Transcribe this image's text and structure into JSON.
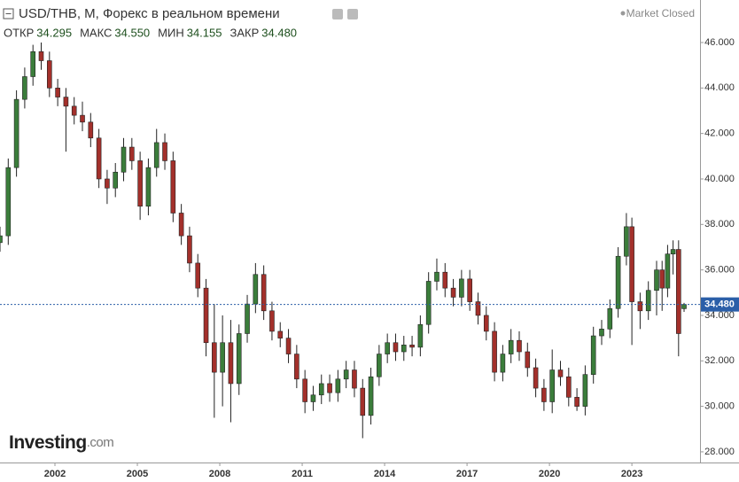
{
  "chart_data": {
    "type": "candlestick",
    "title": "USD/THB, M, Форекс в реальном времени",
    "status": "Market Closed",
    "brand": {
      "name": "Investing",
      "suffix": ".com"
    },
    "header_items": [
      {
        "name": "ОТКР",
        "label": "34.295"
      },
      {
        "name": "МАКС",
        "label": "34.550"
      },
      {
        "name": "МИН",
        "label": "34.155"
      },
      {
        "name": "ЗАКР",
        "label": "34.480"
      }
    ],
    "last_price": {
      "value": 34.48,
      "label": "34.480"
    },
    "up_color": "#3b7d3b",
    "down_color": "#a3302b",
    "line_color": "#2b5fa8",
    "xlim": [
      2000.0,
      2025.48
    ],
    "xticks": [
      2002,
      2005,
      2008,
      2011,
      2014,
      2017,
      2020,
      2023
    ],
    "ylim": [
      27.53,
      47.87
    ],
    "yticks": [
      {
        "value": 28,
        "label": "28.000"
      },
      {
        "value": 30,
        "label": "30.000"
      },
      {
        "value": 32,
        "label": "32.000"
      },
      {
        "value": 34,
        "label": "34.000"
      },
      {
        "value": 36,
        "label": "36.000"
      },
      {
        "value": 38,
        "label": "38.000"
      },
      {
        "value": 40,
        "label": "40.000"
      },
      {
        "value": 42,
        "label": "42.000"
      },
      {
        "value": 44,
        "label": "44.000"
      },
      {
        "value": 46,
        "label": "46.000"
      }
    ],
    "x": [
      2000.0,
      2000.3,
      2000.6,
      2000.9,
      2001.2,
      2001.5,
      2001.8,
      2002.1,
      2002.4,
      2002.7,
      2003.0,
      2003.3,
      2003.6,
      2003.9,
      2004.2,
      2004.5,
      2004.8,
      2005.1,
      2005.4,
      2005.7,
      2006.0,
      2006.3,
      2006.6,
      2006.9,
      2007.2,
      2007.5,
      2007.8,
      2008.1,
      2008.4,
      2008.7,
      2009.0,
      2009.3,
      2009.6,
      2009.9,
      2010.2,
      2010.5,
      2010.8,
      2011.1,
      2011.4,
      2011.7,
      2012.0,
      2012.3,
      2012.6,
      2012.9,
      2013.2,
      2013.5,
      2013.8,
      2014.1,
      2014.4,
      2014.7,
      2015.0,
      2015.3,
      2015.6,
      2015.9,
      2016.2,
      2016.5,
      2016.8,
      2017.1,
      2017.4,
      2017.7,
      2018.0,
      2018.3,
      2018.6,
      2018.9,
      2019.2,
      2019.5,
      2019.8,
      2020.1,
      2020.4,
      2020.7,
      2021.0,
      2021.3,
      2021.6,
      2021.9,
      2022.2,
      2022.5,
      2022.8,
      2023.0,
      2023.3,
      2023.6,
      2023.9,
      2024.1,
      2024.3,
      2024.5,
      2024.7,
      2024.9
    ],
    "open": [
      37.2,
      37.5,
      40.5,
      43.5,
      44.5,
      45.6,
      45.2,
      44.0,
      43.6,
      43.2,
      42.8,
      42.5,
      41.8,
      40.0,
      39.6,
      40.3,
      41.4,
      40.8,
      38.8,
      40.5,
      41.6,
      40.8,
      38.5,
      37.5,
      36.3,
      35.2,
      32.8,
      31.5,
      32.8,
      31.0,
      33.2,
      34.5,
      35.8,
      34.2,
      33.3,
      33.0,
      32.3,
      31.2,
      30.2,
      30.5,
      31.0,
      30.6,
      31.2,
      31.6,
      30.8,
      29.6,
      31.3,
      32.3,
      32.8,
      32.4,
      32.7,
      32.6,
      33.6,
      35.5,
      35.9,
      35.2,
      34.8,
      35.6,
      34.6,
      34.0,
      33.3,
      31.5,
      32.3,
      32.9,
      32.4,
      31.7,
      30.8,
      30.2,
      31.6,
      31.3,
      30.4,
      30.0,
      31.4,
      33.1,
      33.4,
      34.3,
      36.6,
      37.9,
      34.6,
      34.2,
      35.1,
      36.0,
      35.2,
      36.7,
      36.9,
      34.295
    ],
    "high": [
      37.9,
      40.9,
      43.9,
      44.9,
      45.9,
      46.0,
      45.6,
      44.4,
      44.0,
      43.6,
      43.4,
      42.9,
      42.2,
      40.4,
      40.7,
      41.8,
      41.8,
      41.2,
      40.9,
      42.2,
      42.0,
      41.2,
      38.9,
      37.9,
      36.7,
      35.6,
      34.5,
      34.0,
      33.8,
      33.6,
      34.9,
      36.3,
      36.2,
      34.6,
      33.7,
      33.4,
      32.7,
      31.6,
      30.9,
      31.4,
      31.4,
      31.6,
      32.0,
      32.0,
      31.2,
      31.7,
      32.7,
      33.2,
      33.2,
      33.1,
      33.1,
      34.0,
      35.9,
      36.5,
      36.3,
      35.6,
      36.0,
      36.0,
      35.0,
      34.4,
      33.7,
      32.7,
      33.4,
      33.3,
      32.8,
      32.1,
      31.2,
      32.5,
      32.0,
      31.7,
      30.8,
      31.8,
      33.5,
      33.8,
      34.7,
      37.0,
      38.5,
      38.3,
      35.0,
      35.5,
      36.4,
      36.4,
      37.1,
      37.3,
      37.3,
      34.55
    ],
    "low": [
      36.8,
      37.1,
      40.1,
      43.1,
      44.1,
      44.8,
      43.6,
      43.2,
      41.2,
      42.4,
      42.1,
      41.4,
      39.6,
      38.9,
      39.2,
      39.9,
      40.4,
      38.2,
      38.4,
      40.1,
      40.4,
      38.1,
      37.1,
      35.9,
      34.8,
      32.2,
      29.5,
      30.0,
      29.3,
      30.5,
      32.8,
      34.1,
      33.8,
      32.9,
      32.6,
      31.9,
      30.8,
      29.7,
      29.8,
      30.1,
      30.2,
      30.2,
      30.8,
      30.4,
      28.6,
      29.2,
      30.9,
      31.9,
      32.0,
      32.0,
      32.2,
      32.2,
      33.2,
      35.1,
      34.8,
      34.4,
      34.4,
      34.2,
      33.6,
      32.9,
      31.1,
      31.1,
      31.9,
      32.0,
      31.3,
      30.4,
      29.8,
      29.7,
      30.9,
      30.0,
      29.8,
      29.6,
      31.0,
      32.7,
      33.0,
      33.9,
      36.2,
      32.7,
      33.4,
      33.8,
      34.0,
      34.2,
      34.8,
      35.8,
      32.2,
      34.155
    ],
    "close": [
      37.5,
      40.5,
      43.5,
      44.5,
      45.6,
      45.2,
      44.0,
      43.6,
      43.2,
      42.8,
      42.5,
      41.8,
      40.0,
      39.6,
      40.3,
      41.4,
      40.8,
      38.8,
      40.5,
      41.6,
      40.8,
      38.5,
      37.5,
      36.3,
      35.2,
      32.8,
      31.5,
      32.8,
      31.0,
      33.2,
      34.5,
      35.8,
      34.2,
      33.3,
      33.0,
      32.3,
      31.2,
      30.2,
      30.5,
      31.0,
      30.6,
      31.2,
      31.6,
      30.8,
      29.6,
      31.3,
      32.3,
      32.8,
      32.4,
      32.7,
      32.6,
      33.6,
      35.5,
      35.9,
      35.2,
      34.8,
      35.6,
      34.6,
      34.0,
      33.3,
      31.5,
      32.3,
      32.9,
      32.4,
      31.7,
      30.8,
      30.2,
      31.6,
      31.3,
      30.4,
      30.0,
      31.4,
      33.1,
      33.4,
      34.3,
      36.6,
      37.9,
      34.6,
      34.2,
      35.1,
      36.0,
      35.2,
      36.7,
      36.9,
      33.2,
      34.48
    ]
  }
}
